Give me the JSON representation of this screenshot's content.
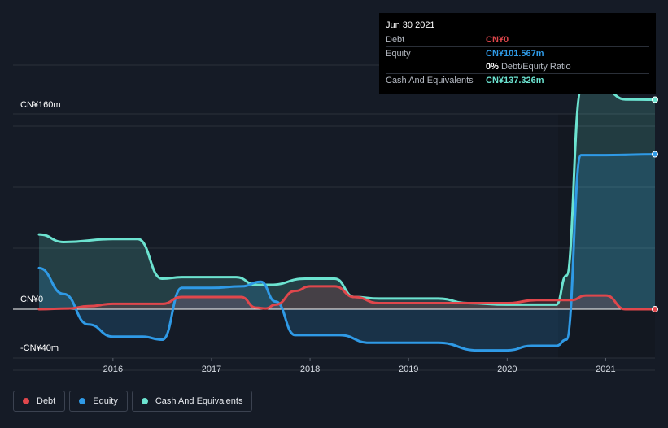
{
  "tooltip": {
    "date": "Jun 30 2021",
    "rows": [
      {
        "label": "Debt",
        "value": "CN¥0",
        "color": "#e0474c"
      },
      {
        "label": "Equity",
        "value": "CN¥101.567m",
        "color": "#2f9ae6"
      },
      {
        "label": "",
        "value": "0%",
        "note": "Debt/Equity Ratio",
        "color": "#ffffff"
      },
      {
        "label": "Cash And Equivalents",
        "value": "CN¥137.326m",
        "color": "#6ce3d0"
      }
    ]
  },
  "legend": [
    {
      "label": "Debt",
      "color": "#e0474c"
    },
    {
      "label": "Equity",
      "color": "#2f9ae6"
    },
    {
      "label": "Cash And Equivalents",
      "color": "#6ce3d0"
    }
  ],
  "chart_data": {
    "type": "area",
    "y_unit": "CN¥m",
    "ylim": [
      -40,
      160
    ],
    "y_tick_labels": [
      "CN¥160m",
      "CN¥0",
      "-CN¥40m"
    ],
    "x_tick_labels": [
      "2016",
      "2017",
      "2018",
      "2019",
      "2020",
      "2021"
    ],
    "x_range": [
      2015.25,
      2021.5
    ],
    "series": [
      {
        "name": "Debt",
        "color": "#e0474c",
        "x": [
          2015.25,
          2015.55,
          2015.75,
          2016.0,
          2016.25,
          2016.5,
          2016.7,
          2017.0,
          2017.3,
          2017.45,
          2017.55,
          2017.65,
          2017.85,
          2018.0,
          2018.25,
          2018.45,
          2018.7,
          2019.0,
          2019.5,
          2020.0,
          2020.3,
          2020.5,
          2020.65,
          2020.8,
          2021.0,
          2021.2,
          2021.5
        ],
        "values": [
          0,
          0.5,
          2,
          3.5,
          3.5,
          3.5,
          8,
          8,
          8,
          1,
          0.5,
          3,
          12,
          15,
          15,
          8,
          4,
          4,
          4,
          4,
          6,
          6,
          6,
          9,
          9,
          0,
          0
        ]
      },
      {
        "name": "Equity",
        "color": "#2f9ae6",
        "x": [
          2015.25,
          2015.5,
          2015.75,
          2016.0,
          2016.3,
          2016.5,
          2016.7,
          2017.0,
          2017.3,
          2017.5,
          2017.65,
          2017.85,
          2018.0,
          2018.3,
          2018.6,
          2019.0,
          2019.3,
          2019.7,
          2020.0,
          2020.25,
          2020.5,
          2020.6,
          2020.75,
          2021.0,
          2021.5
        ],
        "values": [
          27,
          10,
          -10,
          -18,
          -18,
          -20,
          14,
          14,
          15,
          18,
          5,
          -17,
          -17,
          -17,
          -22,
          -22,
          -22,
          -27,
          -27,
          -24,
          -24,
          -20,
          101,
          101,
          101.567
        ]
      },
      {
        "name": "Cash And Equivalents",
        "color": "#6ce3d0",
        "x": [
          2015.25,
          2015.5,
          2016.0,
          2016.25,
          2016.5,
          2016.7,
          2017.0,
          2017.25,
          2017.45,
          2017.6,
          2017.95,
          2018.25,
          2018.45,
          2018.7,
          2019.0,
          2019.3,
          2019.6,
          2020.0,
          2020.25,
          2020.5,
          2020.6,
          2020.75,
          2021.0,
          2021.2,
          2021.5
        ],
        "values": [
          49,
          44,
          46,
          46,
          20,
          21,
          21,
          21,
          16,
          16,
          20,
          20,
          8,
          7,
          7,
          7,
          4,
          3,
          3,
          3,
          22,
          143,
          143,
          137.5,
          137.326
        ]
      }
    ],
    "legend_position": "bottom-left",
    "grid": true
  }
}
